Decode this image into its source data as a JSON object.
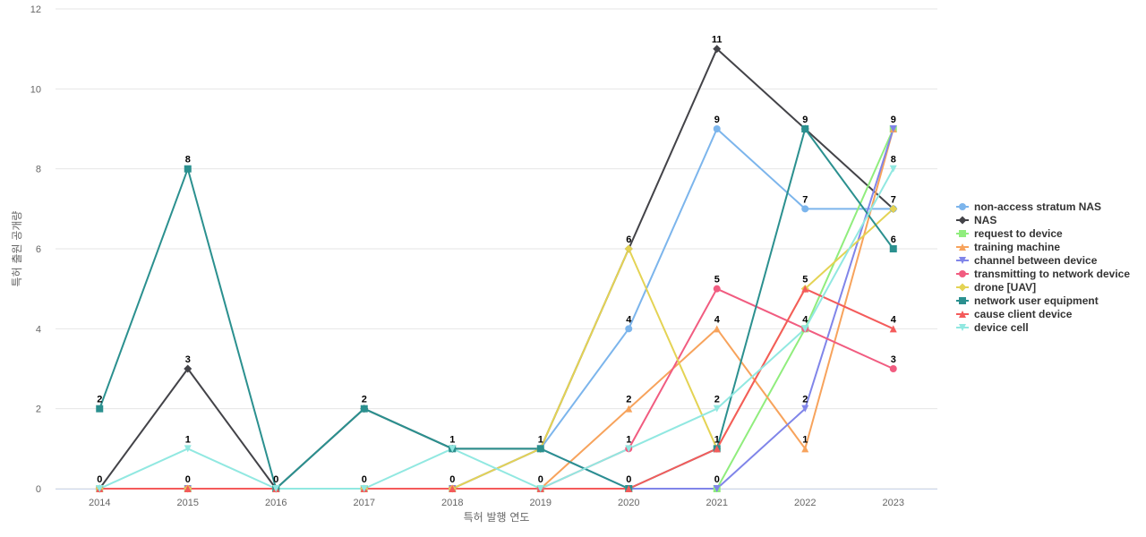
{
  "chart_data": {
    "type": "line",
    "title": "",
    "xlabel": "특허 발행 연도",
    "ylabel": "특허 출원 공개량",
    "ylim": [
      0,
      12
    ],
    "yticks": [
      0,
      2,
      4,
      6,
      8,
      10,
      12
    ],
    "grid": true,
    "legend_position": "right",
    "x": [
      "2014",
      "2015",
      "2016",
      "2017",
      "2018",
      "2019",
      "2020",
      "2021",
      "2022",
      "2023"
    ],
    "series": [
      {
        "name": "non-access stratum NAS",
        "color": "#7cb5ec",
        "marker": "circle",
        "values": [
          0,
          0,
          0,
          0,
          0,
          1,
          4,
          9,
          7,
          7
        ]
      },
      {
        "name": "NAS",
        "color": "#434348",
        "marker": "diamond",
        "values": [
          0,
          3,
          0,
          2,
          1,
          1,
          6,
          11,
          9,
          7
        ]
      },
      {
        "name": "request to device",
        "color": "#90ed7d",
        "marker": "square",
        "values": [
          0,
          0,
          0,
          0,
          0,
          0,
          0,
          0,
          4,
          9
        ]
      },
      {
        "name": "training machine",
        "color": "#f7a35c",
        "marker": "triangle",
        "values": [
          0,
          0,
          0,
          0,
          0,
          0,
          2,
          4,
          1,
          9
        ]
      },
      {
        "name": "channel between device",
        "color": "#8085e9",
        "marker": "triangle-down",
        "values": [
          0,
          0,
          0,
          0,
          0,
          1,
          0,
          0,
          2,
          9
        ]
      },
      {
        "name": "transmitting to network device",
        "color": "#f15c80",
        "marker": "circle",
        "values": [
          0,
          0,
          0,
          0,
          0,
          0,
          1,
          5,
          4,
          3
        ]
      },
      {
        "name": "drone [UAV]",
        "color": "#e4d354",
        "marker": "diamond",
        "values": [
          0,
          0,
          0,
          0,
          0,
          1,
          6,
          1,
          5,
          7
        ]
      },
      {
        "name": "network user equipment",
        "color": "#2b908f",
        "marker": "square",
        "values": [
          2,
          8,
          0,
          2,
          1,
          1,
          0,
          1,
          9,
          6
        ]
      },
      {
        "name": "cause client device",
        "color": "#f45b5b",
        "marker": "triangle",
        "values": [
          0,
          0,
          0,
          0,
          0,
          0,
          0,
          1,
          5,
          4
        ]
      },
      {
        "name": "device cell",
        "color": "#91e8e1",
        "marker": "triangle-down",
        "values": [
          0,
          1,
          0,
          0,
          1,
          0,
          1,
          2,
          4,
          8
        ]
      }
    ],
    "data_labels": [
      {
        "x": "2014",
        "value": 2,
        "text": "2"
      },
      {
        "x": "2014",
        "value": 0,
        "text": "0"
      },
      {
        "x": "2015",
        "value": 8,
        "text": "8"
      },
      {
        "x": "2015",
        "value": 3,
        "text": "3"
      },
      {
        "x": "2015",
        "value": 1,
        "text": "1"
      },
      {
        "x": "2015",
        "value": 0,
        "text": "0"
      },
      {
        "x": "2016",
        "value": 0,
        "text": "0"
      },
      {
        "x": "2017",
        "value": 2,
        "text": "2"
      },
      {
        "x": "2017",
        "value": 0,
        "text": "0"
      },
      {
        "x": "2018",
        "value": 1,
        "text": "1"
      },
      {
        "x": "2018",
        "value": 0,
        "text": "0"
      },
      {
        "x": "2019",
        "value": 1,
        "text": "1"
      },
      {
        "x": "2019",
        "value": 0,
        "text": "0"
      },
      {
        "x": "2020",
        "value": 6,
        "text": "6"
      },
      {
        "x": "2020",
        "value": 4,
        "text": "4"
      },
      {
        "x": "2020",
        "value": 2,
        "text": "2"
      },
      {
        "x": "2020",
        "value": 1,
        "text": "1"
      },
      {
        "x": "2020",
        "value": 0,
        "text": "0"
      },
      {
        "x": "2021",
        "value": 11,
        "text": "11"
      },
      {
        "x": "2021",
        "value": 9,
        "text": "9"
      },
      {
        "x": "2021",
        "value": 5,
        "text": "5"
      },
      {
        "x": "2021",
        "value": 4,
        "text": "4"
      },
      {
        "x": "2021",
        "value": 2,
        "text": "2"
      },
      {
        "x": "2021",
        "value": 1,
        "text": "1"
      },
      {
        "x": "2021",
        "value": 0,
        "text": "0"
      },
      {
        "x": "2022",
        "value": 9,
        "text": "9"
      },
      {
        "x": "2022",
        "value": 7,
        "text": "7"
      },
      {
        "x": "2022",
        "value": 5,
        "text": "5"
      },
      {
        "x": "2022",
        "value": 4,
        "text": "4"
      },
      {
        "x": "2022",
        "value": 2,
        "text": "2"
      },
      {
        "x": "2022",
        "value": 1,
        "text": "1"
      },
      {
        "x": "2023",
        "value": 9,
        "text": "9"
      },
      {
        "x": "2023",
        "value": 8,
        "text": "8"
      },
      {
        "x": "2023",
        "value": 7,
        "text": "7"
      },
      {
        "x": "2023",
        "value": 6,
        "text": "6"
      },
      {
        "x": "2023",
        "value": 4,
        "text": "4"
      },
      {
        "x": "2023",
        "value": 3,
        "text": "3"
      }
    ]
  }
}
